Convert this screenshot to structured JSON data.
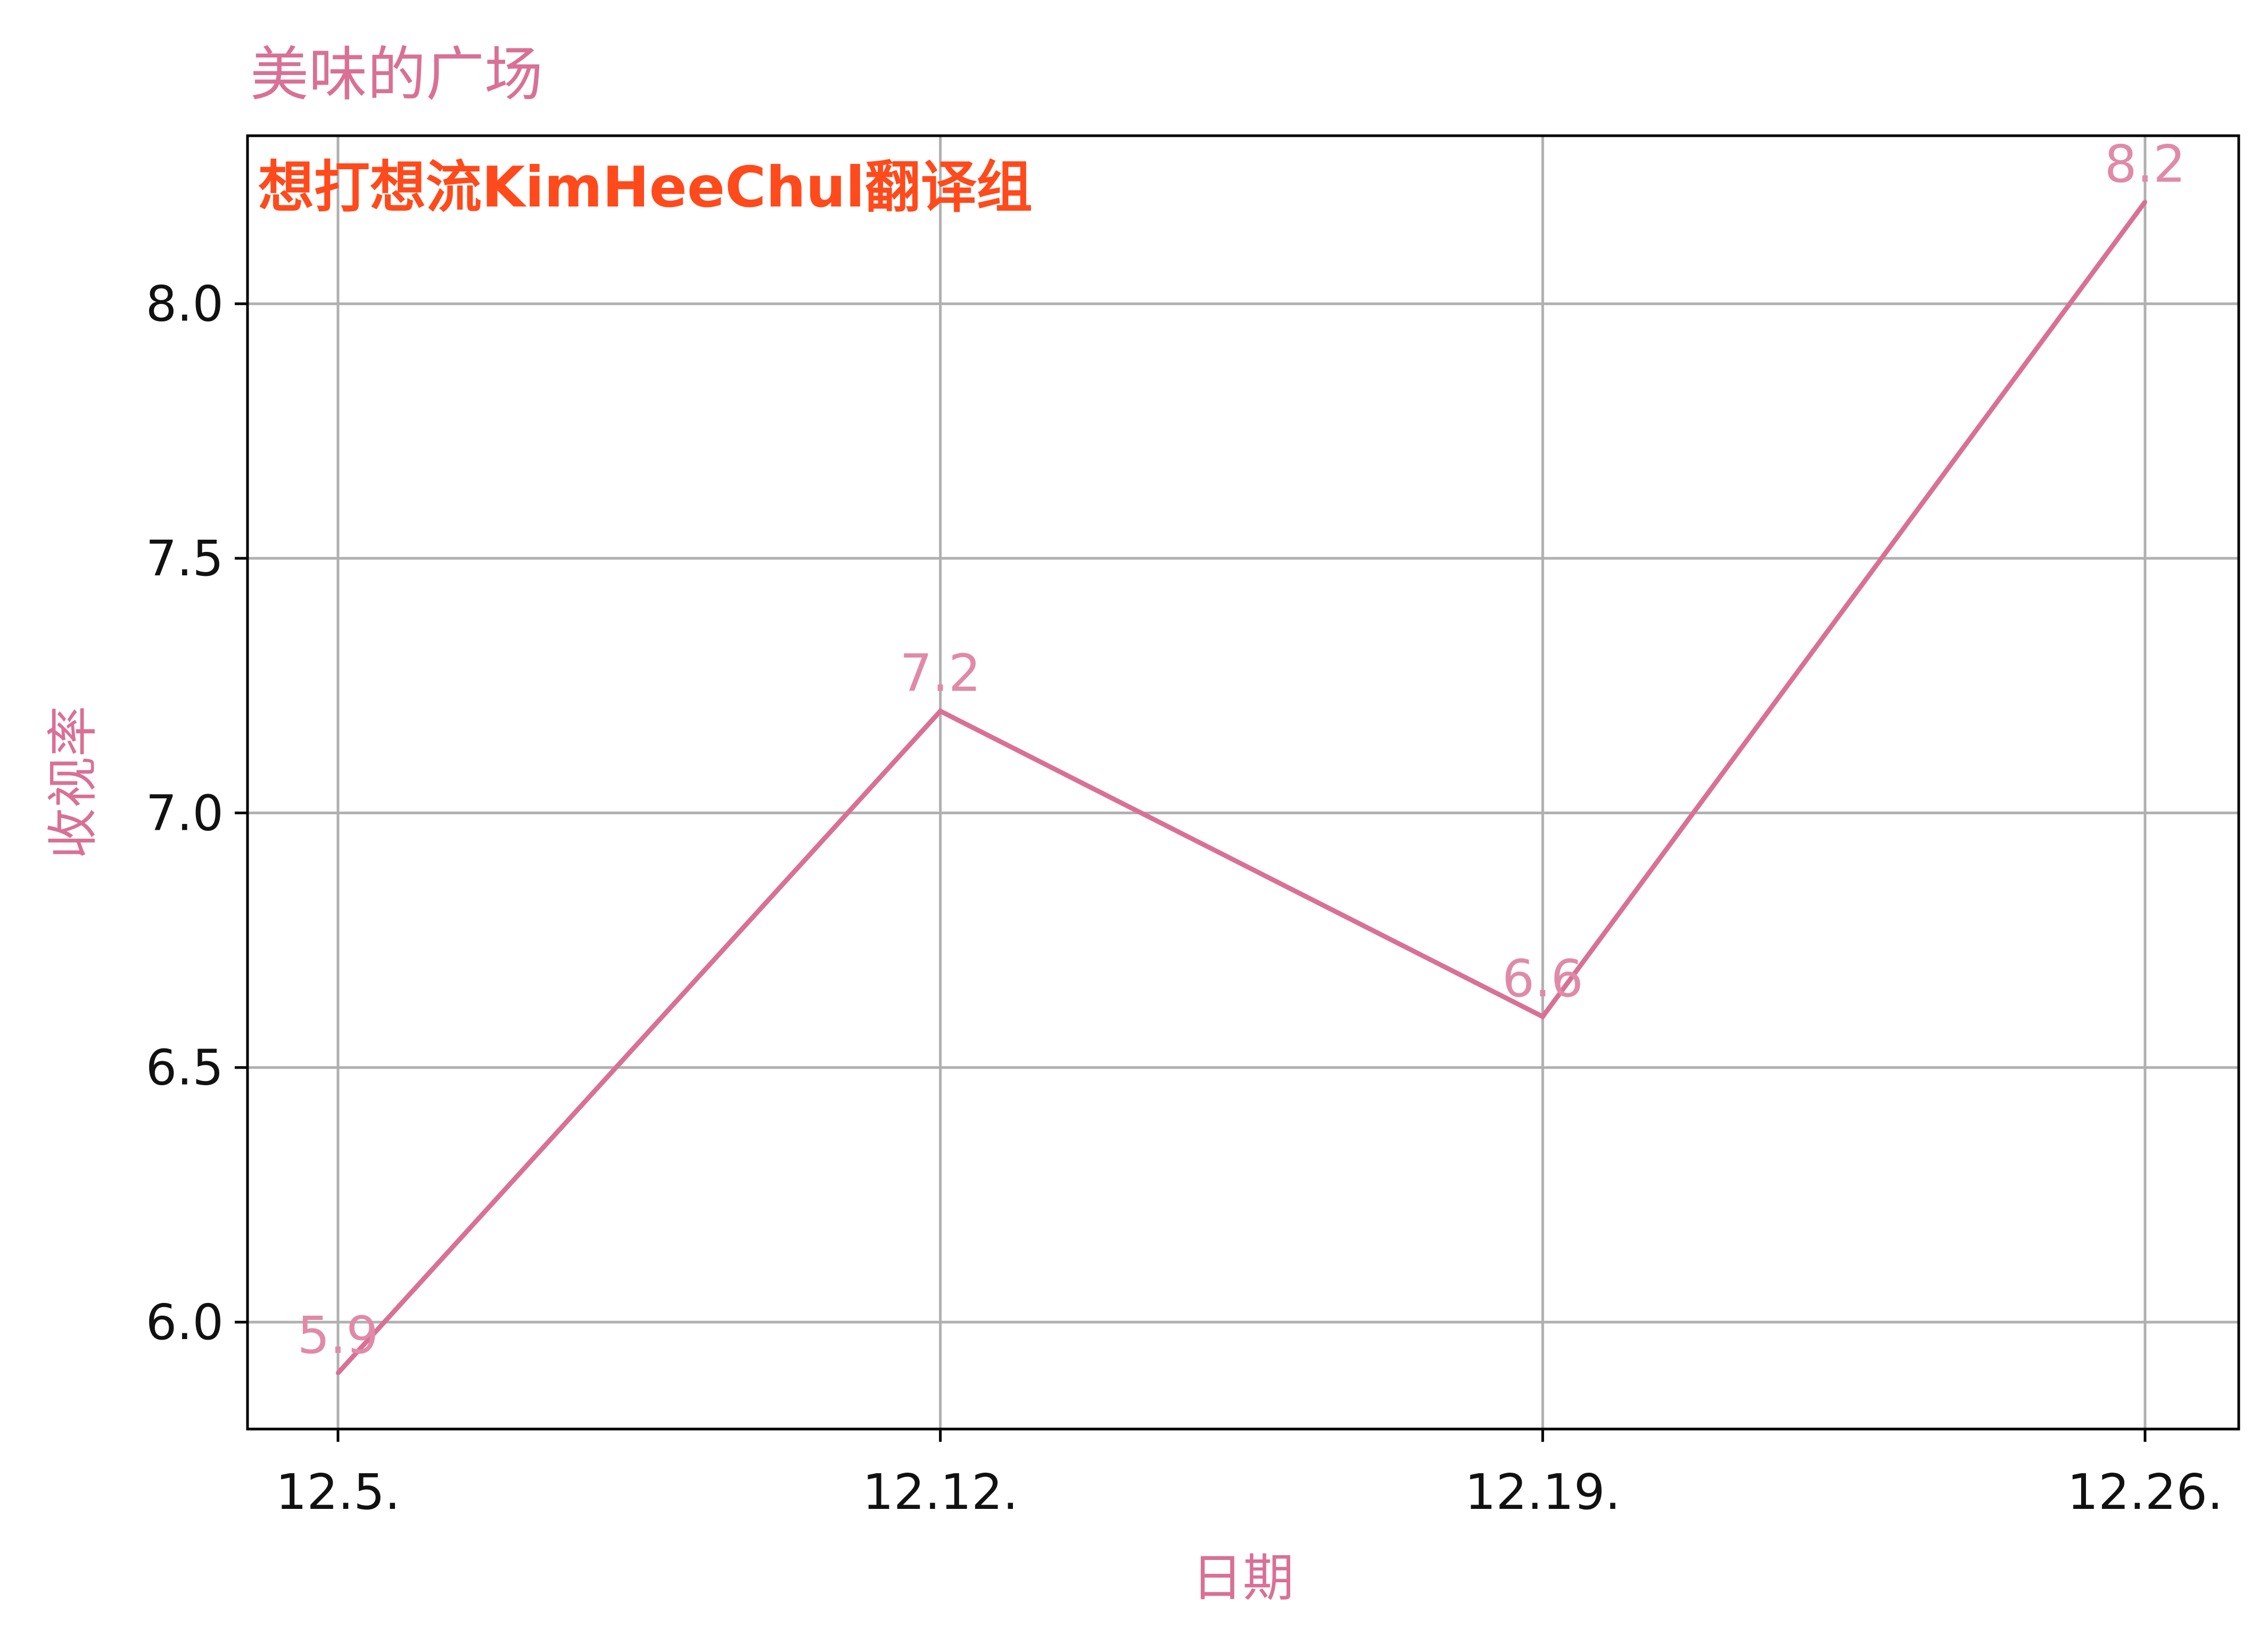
{
  "chart_data": {
    "type": "line",
    "title": "美味的广场",
    "watermark": "想打想流KimHeeChul翻译组",
    "xlabel": "日期",
    "ylabel": "收视率",
    "categories": [
      "12.5.",
      "12.12.",
      "12.19.",
      "12.26."
    ],
    "series": [
      {
        "values": [
          5.9,
          7.2,
          6.6,
          8.2
        ]
      }
    ],
    "data_labels": [
      "5.9",
      "7.2",
      "6.6",
      "8.2"
    ],
    "yticks": [
      6.0,
      6.5,
      7.0,
      7.5,
      8.0
    ],
    "ytick_labels": [
      "6.0",
      "6.5",
      "7.0",
      "7.5",
      "8.0"
    ],
    "ylim": [
      5.79,
      8.33
    ],
    "grid": true,
    "colors": {
      "line": "#d97095",
      "title": "#d97095",
      "axis_titles": "#d97095",
      "data_labels": "#e08aa8",
      "watermark": "#ff4a1c",
      "grid": "#b0b0b0",
      "frame": "#000000"
    }
  }
}
